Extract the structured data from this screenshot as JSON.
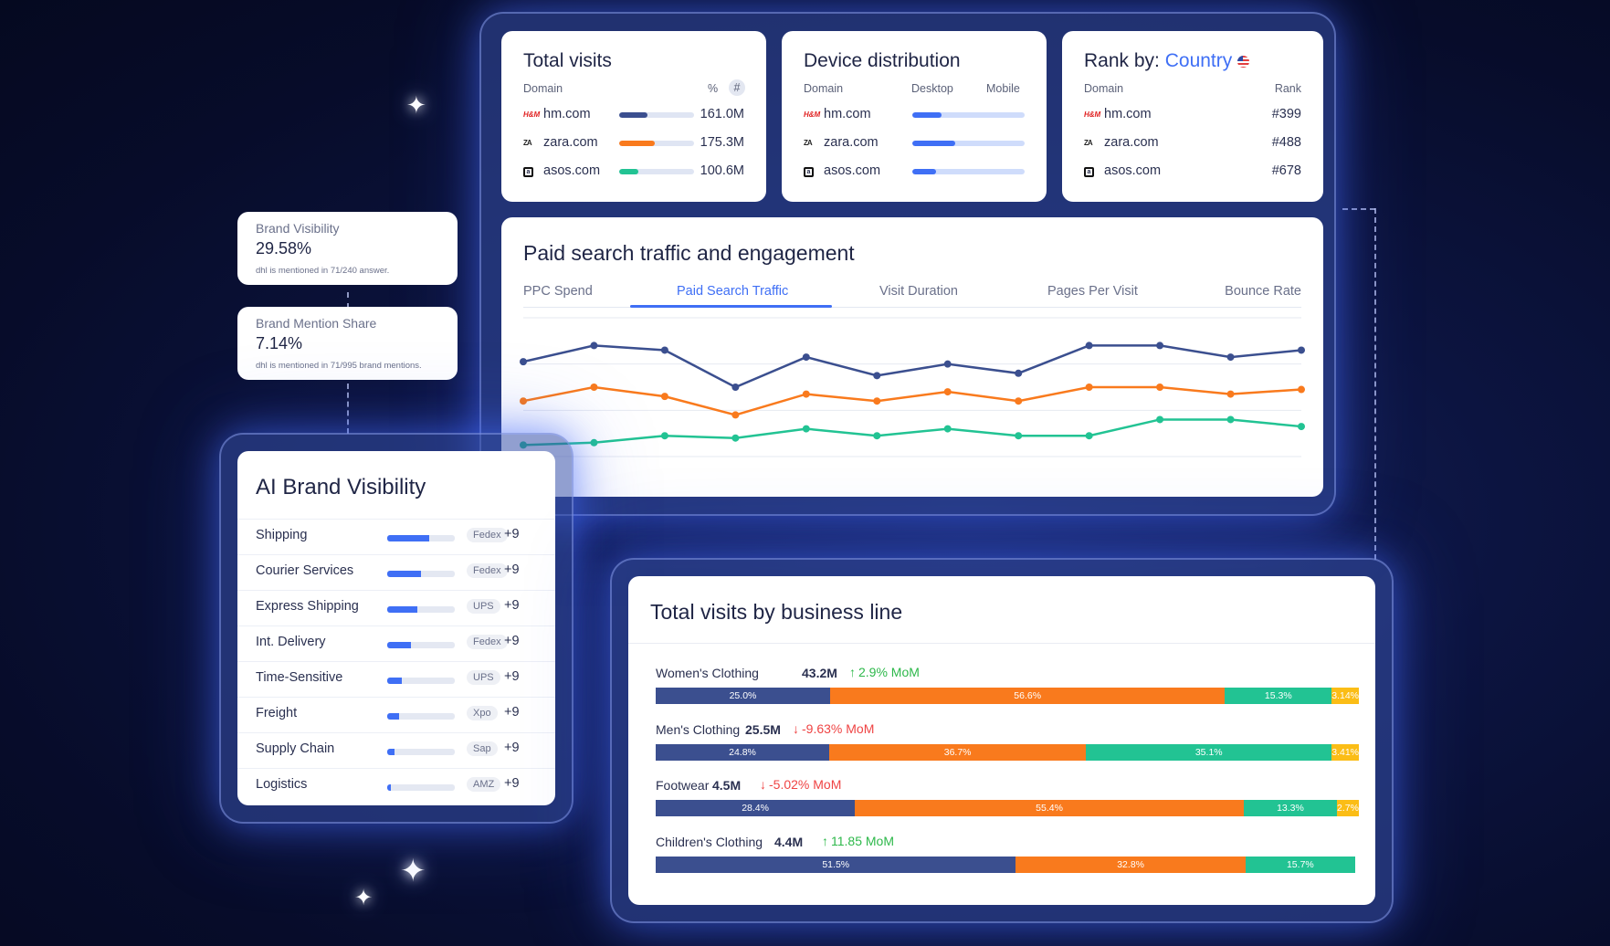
{
  "total_visits": {
    "title": "Total visits",
    "col_domain": "Domain",
    "col_pct": "%",
    "col_hash": "#",
    "rows": [
      {
        "domain": "hm.com",
        "value": "161.0M",
        "share": 0.38,
        "color": "#3b4f8f",
        "logo": "H&M"
      },
      {
        "domain": "zara.com",
        "value": "175.3M",
        "share": 0.48,
        "color": "#f97a1d",
        "logo": "ZARA"
      },
      {
        "domain": "asos.com",
        "value": "100.6M",
        "share": 0.25,
        "color": "#22c393",
        "logo": "a"
      }
    ]
  },
  "device_distribution": {
    "title": "Device distribution",
    "col_domain": "Domain",
    "col_desktop": "Desktop",
    "col_mobile": "Mobile",
    "rows": [
      {
        "domain": "hm.com",
        "desktop_share": 0.26,
        "logo": "H&M"
      },
      {
        "domain": "zara.com",
        "desktop_share": 0.38,
        "logo": "ZARA"
      },
      {
        "domain": "asos.com",
        "desktop_share": 0.21,
        "logo": "a"
      }
    ],
    "desktop_color": "#3f6ff5",
    "mobile_color": "#cfdcfb"
  },
  "rank": {
    "title_prefix": "Rank by:",
    "title_link": "Country",
    "col_domain": "Domain",
    "col_rank": "Rank",
    "rows": [
      {
        "domain": "hm.com",
        "rank": "#399",
        "logo": "H&M"
      },
      {
        "domain": "zara.com",
        "rank": "#488",
        "logo": "ZARA"
      },
      {
        "domain": "asos.com",
        "rank": "#678",
        "logo": "a"
      }
    ]
  },
  "paid_search": {
    "title": "Paid search traffic and engagement",
    "tabs": [
      "PPC Spend",
      "Paid Search Traffic",
      "Visit Duration",
      "Pages Per Visit",
      "Bounce Rate"
    ],
    "active_tab": 1
  },
  "chart_data": {
    "type": "line",
    "title": "",
    "xlabel": "",
    "ylabel": "",
    "x": [
      1,
      2,
      3,
      4,
      5,
      6,
      7,
      8,
      9,
      10,
      11,
      12
    ],
    "ylim": [
      0,
      6
    ],
    "grid": true,
    "series": [
      {
        "color": "#3b4f8f",
        "values": [
          4.1,
          4.8,
          4.6,
          3.0,
          4.3,
          3.5,
          4.0,
          3.6,
          4.8,
          4.8,
          4.3,
          4.6
        ]
      },
      {
        "color": "#f97a1d",
        "values": [
          2.4,
          3.0,
          2.6,
          1.8,
          2.7,
          2.4,
          2.8,
          2.4,
          3.0,
          3.0,
          2.7,
          2.9
        ]
      },
      {
        "color": "#22c393",
        "values": [
          0.5,
          0.6,
          0.9,
          0.8,
          1.2,
          0.9,
          1.2,
          0.9,
          0.9,
          1.6,
          1.6,
          1.3
        ]
      }
    ]
  },
  "brand_visibility_kpi": {
    "label": "Brand Visibility",
    "value": "29.58%",
    "note": "dhl is mentioned in 71/240 answer."
  },
  "brand_mention_kpi": {
    "label": "Brand Mention Share",
    "value": "7.14%",
    "note": "dhl is mentioned in 71/995 brand mentions."
  },
  "ai_visibility": {
    "title": "AI Brand Visibility",
    "rows": [
      {
        "label": "Shipping",
        "share": 0.62,
        "tag": "Fedex",
        "plus": "+9"
      },
      {
        "label": "Courier Services",
        "share": 0.5,
        "tag": "Fedex",
        "plus": "+9"
      },
      {
        "label": "Express Shipping",
        "share": 0.45,
        "tag": "UPS",
        "plus": "+9"
      },
      {
        "label": "Int. Delivery",
        "share": 0.35,
        "tag": "Fedex",
        "plus": "+9"
      },
      {
        "label": "Time-Sensitive",
        "share": 0.22,
        "tag": "UPS",
        "plus": "+9"
      },
      {
        "label": "Freight",
        "share": 0.17,
        "tag": "Xpo",
        "plus": "+9"
      },
      {
        "label": "Supply Chain",
        "share": 0.11,
        "tag": "Sap",
        "plus": "+9"
      },
      {
        "label": "Logistics",
        "share": 0.05,
        "tag": "AMZ",
        "plus": "+9"
      }
    ]
  },
  "business_line": {
    "title": "Total visits by business line",
    "colors": [
      "#3b4f8f",
      "#f97a1d",
      "#22c393",
      "#fbbd16"
    ],
    "rows": [
      {
        "name": "Women's Clothing",
        "total": "43.2M",
        "arrow": "↑",
        "change": "2.9% MoM",
        "direction": "up",
        "segments": [
          {
            "pct": 25.0,
            "label": "25.0%"
          },
          {
            "pct": 56.6,
            "label": "56.6%"
          },
          {
            "pct": 15.3,
            "label": "15.3%"
          },
          {
            "pct": 3.14,
            "label": "3.14%"
          }
        ]
      },
      {
        "name": "Men's Clothing",
        "total": "25.5M",
        "arrow": "↓",
        "change": "-9.63% MoM",
        "direction": "down",
        "segments": [
          {
            "pct": 24.8,
            "label": "24.8%"
          },
          {
            "pct": 36.7,
            "label": "36.7%"
          },
          {
            "pct": 35.1,
            "label": "35.1%"
          },
          {
            "pct": 3.41,
            "label": "3.41%"
          }
        ]
      },
      {
        "name": "Footwear",
        "total": "4.5M",
        "arrow": "↓",
        "change": "-5.02% MoM",
        "direction": "down",
        "segments": [
          {
            "pct": 28.4,
            "label": "28.4%"
          },
          {
            "pct": 55.4,
            "label": "55.4%"
          },
          {
            "pct": 13.3,
            "label": "13.3%"
          },
          {
            "pct": 2.7,
            "label": "2.7%"
          }
        ]
      },
      {
        "name": "Children's Clothing",
        "total": "4.4M",
        "arrow": "↑",
        "change": "11.85 MoM",
        "direction": "up",
        "segments": [
          {
            "pct": 51.5,
            "label": "51.5%"
          },
          {
            "pct": 32.8,
            "label": "32.8%"
          },
          {
            "pct": 15.7,
            "label": "15.7%"
          }
        ]
      }
    ]
  }
}
